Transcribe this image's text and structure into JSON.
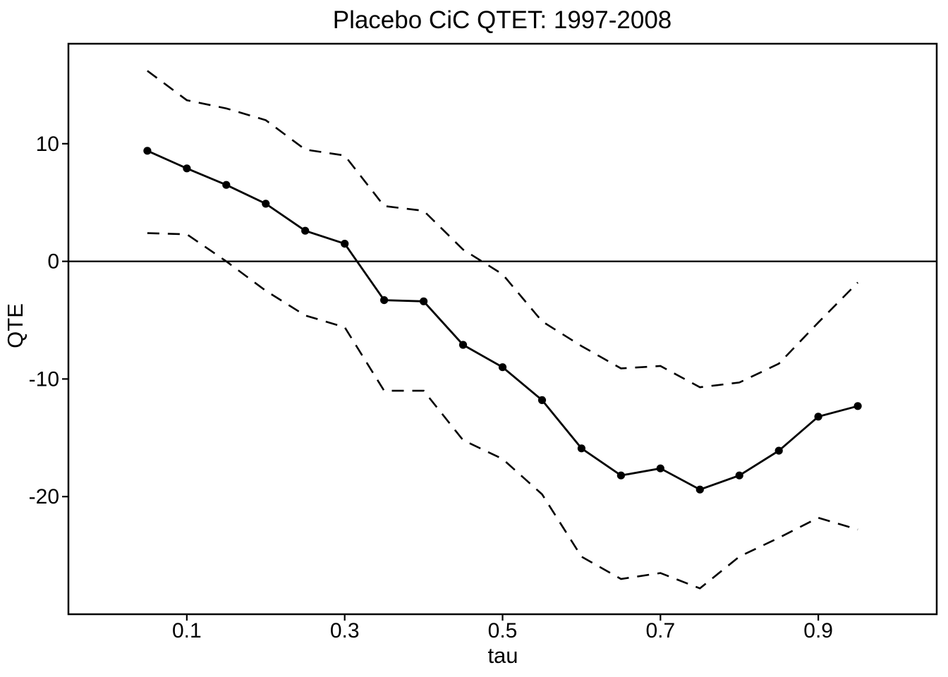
{
  "chart_data": {
    "type": "line",
    "title": "Placebo CiC QTET: 1997-2008",
    "xlabel": "tau",
    "ylabel": "QTE",
    "x": [
      0.05,
      0.1,
      0.15,
      0.2,
      0.25,
      0.3,
      0.35,
      0.4,
      0.45,
      0.5,
      0.55,
      0.6,
      0.65,
      0.7,
      0.75,
      0.8,
      0.85,
      0.9,
      0.95
    ],
    "series": [
      {
        "name": "qte_estimate",
        "style": "solid-with-points",
        "values": [
          9.4,
          7.9,
          6.5,
          4.9,
          2.6,
          1.5,
          -3.3,
          -3.4,
          -7.1,
          -9.0,
          -11.8,
          -15.9,
          -18.2,
          -17.6,
          -19.4,
          -18.2,
          -16.1,
          -13.2,
          -12.3
        ]
      },
      {
        "name": "upper_confidence_band",
        "style": "dashed",
        "values": [
          16.2,
          13.7,
          13.0,
          12.0,
          9.5,
          9.0,
          4.7,
          4.3,
          1.0,
          -1.1,
          -5.1,
          -7.2,
          -9.1,
          -8.9,
          -10.7,
          -10.3,
          -8.7,
          -5.2,
          -1.8
        ]
      },
      {
        "name": "lower_confidence_band",
        "style": "dashed",
        "values": [
          2.4,
          2.3,
          0.0,
          -2.5,
          -4.6,
          -5.6,
          -11.0,
          -11.0,
          -15.2,
          -16.8,
          -19.8,
          -25.1,
          -27.0,
          -26.5,
          -27.8,
          -25.1,
          -23.5,
          -21.8,
          -22.8
        ]
      }
    ],
    "x_ticks": [
      "0.1",
      "0.3",
      "0.5",
      "0.7",
      "0.9"
    ],
    "x_tick_values": [
      0.1,
      0.3,
      0.5,
      0.7,
      0.9
    ],
    "y_ticks": [
      "10",
      "0",
      "-10",
      "-20"
    ],
    "y_tick_values": [
      10,
      0,
      -10,
      -20
    ],
    "xlim": [
      -0.05,
      1.05
    ],
    "ylim": [
      -30,
      18.5
    ],
    "reference_line_y": 0,
    "grid": false,
    "legend": "none",
    "colors": {
      "foreground": "#000000",
      "background": "#ffffff"
    }
  }
}
